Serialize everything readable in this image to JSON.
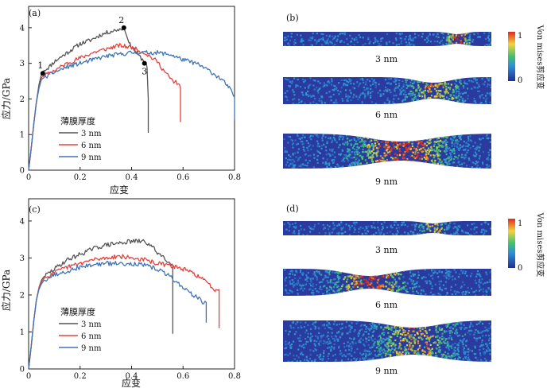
{
  "panels": {
    "a": {
      "label": "(a)"
    },
    "b": {
      "label": "(b)",
      "slabs": [
        "3 nm",
        "6 nm",
        "9 nm"
      ],
      "colorbar": {
        "label": "Von mises剪应变",
        "max": "1",
        "min": "0"
      }
    },
    "c": {
      "label": "(c)"
    },
    "d": {
      "label": "(d)",
      "slabs": [
        "3 nm",
        "6 nm",
        "9 nm"
      ],
      "colorbar": {
        "label": "Von mises剪应变",
        "max": "1",
        "min": "0"
      }
    }
  },
  "colors": {
    "3 nm": "#555555",
    "6 nm": "#e8413c",
    "9 nm": "#3f74b8",
    "axis": "#222222",
    "slab_base": "#2a3a9e"
  },
  "chart_data": [
    {
      "type": "line",
      "panel": "a",
      "xlabel": "应变",
      "ylabel": "应力/GPa",
      "xlim": [
        0,
        0.8
      ],
      "ylim": [
        0,
        4.6
      ],
      "xticks": [
        "0",
        "0.2",
        "0.4",
        "0.6",
        "0.8"
      ],
      "yticks": [
        "0",
        "1",
        "2",
        "3",
        "4"
      ],
      "legend": {
        "title": "薄膜厚度",
        "position": "center-left"
      },
      "series": [
        {
          "name": "3 nm",
          "x": [
            0,
            0.01,
            0.02,
            0.03,
            0.04,
            0.05,
            0.06,
            0.08,
            0.1,
            0.13,
            0.16,
            0.2,
            0.24,
            0.28,
            0.32,
            0.35,
            0.37,
            0.39,
            0.41,
            0.43,
            0.45,
            0.46,
            0.465,
            0.465
          ],
          "y": [
            0,
            0.6,
            1.3,
            1.9,
            2.4,
            2.7,
            2.8,
            2.9,
            3.05,
            3.2,
            3.35,
            3.55,
            3.65,
            3.8,
            3.9,
            3.95,
            4.0,
            3.55,
            3.4,
            3.2,
            3.05,
            2.9,
            2.0,
            1.05
          ]
        },
        {
          "name": "6 nm",
          "x": [
            0,
            0.01,
            0.02,
            0.03,
            0.04,
            0.05,
            0.06,
            0.1,
            0.15,
            0.2,
            0.25,
            0.3,
            0.35,
            0.4,
            0.45,
            0.5,
            0.53,
            0.56,
            0.58,
            0.59,
            0.59
          ],
          "y": [
            0,
            0.6,
            1.3,
            1.9,
            2.3,
            2.6,
            2.65,
            2.8,
            3.0,
            3.15,
            3.3,
            3.4,
            3.5,
            3.45,
            3.3,
            3.05,
            2.75,
            2.5,
            2.45,
            2.3,
            1.35
          ]
        },
        {
          "name": "9 nm",
          "x": [
            0,
            0.01,
            0.02,
            0.03,
            0.04,
            0.05,
            0.06,
            0.1,
            0.15,
            0.2,
            0.25,
            0.3,
            0.35,
            0.4,
            0.45,
            0.5,
            0.55,
            0.6,
            0.65,
            0.7,
            0.75,
            0.78,
            0.8,
            0.8
          ],
          "y": [
            0,
            0.6,
            1.3,
            1.9,
            2.3,
            2.55,
            2.6,
            2.75,
            2.9,
            3.0,
            3.1,
            3.2,
            3.25,
            3.3,
            3.3,
            3.3,
            3.25,
            3.1,
            3.0,
            2.8,
            2.55,
            2.3,
            2.05,
            1.4
          ]
        }
      ],
      "markers": [
        {
          "label": "1",
          "x": 0.055,
          "y": 2.72
        },
        {
          "label": "2",
          "x": 0.37,
          "y": 4.0
        },
        {
          "label": "3",
          "x": 0.45,
          "y": 3.0
        }
      ]
    },
    {
      "type": "line",
      "panel": "c",
      "xlabel": "应变",
      "ylabel": "应力/GPa",
      "xlim": [
        0,
        0.8
      ],
      "ylim": [
        0,
        4.6
      ],
      "xticks": [
        "0",
        "0.2",
        "0.4",
        "0.6",
        "0.8"
      ],
      "yticks": [
        "0",
        "1",
        "2",
        "3",
        "4"
      ],
      "legend": {
        "title": "薄膜厚度",
        "position": "center-left"
      },
      "series": [
        {
          "name": "3 nm",
          "x": [
            0,
            0.01,
            0.02,
            0.03,
            0.04,
            0.05,
            0.06,
            0.1,
            0.15,
            0.2,
            0.25,
            0.3,
            0.35,
            0.4,
            0.45,
            0.48,
            0.5,
            0.53,
            0.55,
            0.56,
            0.56
          ],
          "y": [
            0,
            0.6,
            1.3,
            1.85,
            2.2,
            2.4,
            2.5,
            2.7,
            2.95,
            3.1,
            3.25,
            3.35,
            3.4,
            3.45,
            3.45,
            3.3,
            3.15,
            3.0,
            2.85,
            2.8,
            0.95
          ]
        },
        {
          "name": "6 nm",
          "x": [
            0,
            0.01,
            0.02,
            0.03,
            0.04,
            0.05,
            0.06,
            0.1,
            0.15,
            0.2,
            0.25,
            0.3,
            0.35,
            0.4,
            0.45,
            0.5,
            0.55,
            0.6,
            0.65,
            0.7,
            0.72,
            0.74,
            0.74
          ],
          "y": [
            0,
            0.6,
            1.3,
            1.85,
            2.2,
            2.35,
            2.45,
            2.6,
            2.75,
            2.85,
            2.95,
            3.0,
            3.05,
            3.0,
            2.95,
            2.85,
            2.8,
            2.7,
            2.55,
            2.3,
            2.15,
            2.15,
            1.1
          ]
        },
        {
          "name": "9 nm",
          "x": [
            0,
            0.01,
            0.02,
            0.03,
            0.04,
            0.05,
            0.06,
            0.1,
            0.15,
            0.2,
            0.25,
            0.3,
            0.35,
            0.4,
            0.45,
            0.5,
            0.55,
            0.6,
            0.65,
            0.68,
            0.69,
            0.69
          ],
          "y": [
            0,
            0.6,
            1.3,
            1.85,
            2.15,
            2.3,
            2.4,
            2.55,
            2.65,
            2.75,
            2.82,
            2.85,
            2.85,
            2.85,
            2.8,
            2.7,
            2.5,
            2.2,
            1.95,
            1.8,
            1.8,
            1.25
          ]
        }
      ]
    }
  ]
}
